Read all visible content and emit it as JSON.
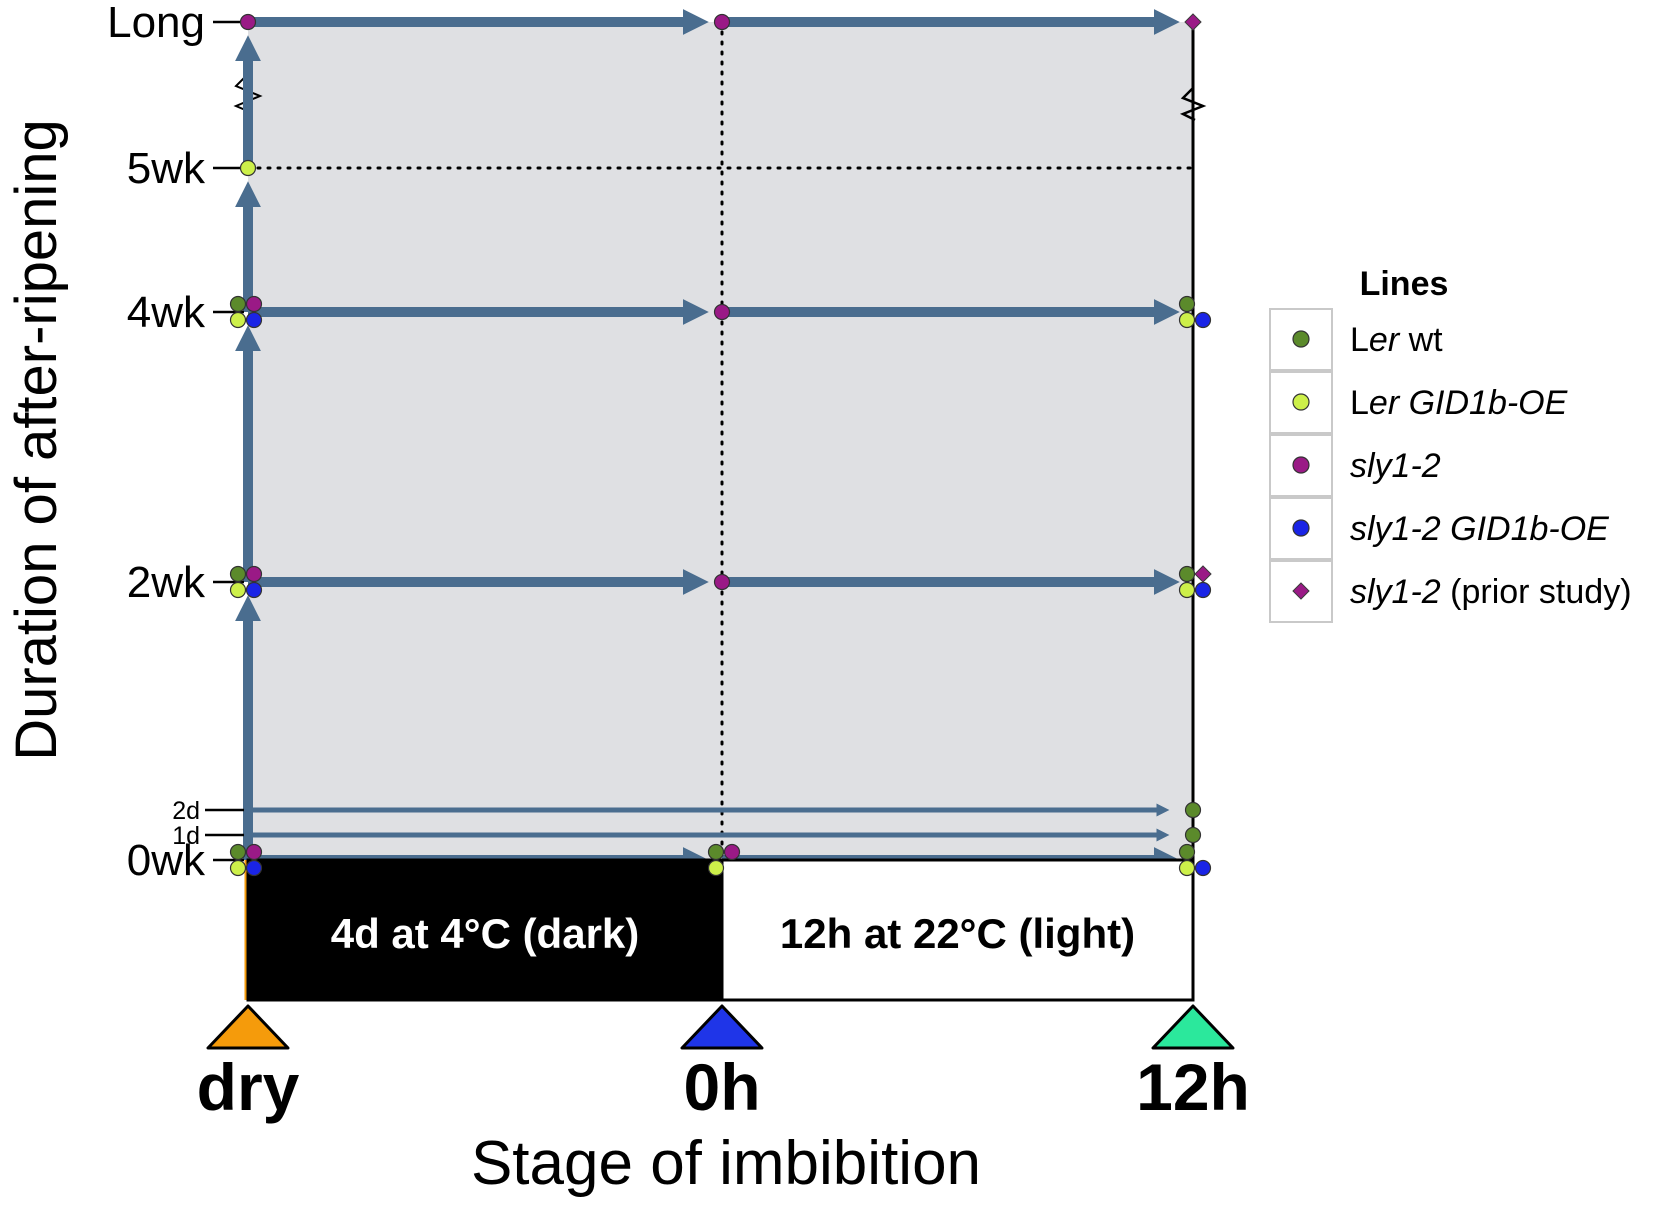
{
  "y_axis": {
    "title": "Duration of after-ripening",
    "ticks": [
      {
        "key": "0wk",
        "label": "0wk",
        "small": false
      },
      {
        "key": "1d",
        "label": "1d",
        "small": true
      },
      {
        "key": "2d",
        "label": "2d",
        "small": true
      },
      {
        "key": "2wk",
        "label": "2wk",
        "small": false
      },
      {
        "key": "4wk",
        "label": "4wk",
        "small": false
      },
      {
        "key": "5wk",
        "label": "5wk",
        "small": false
      },
      {
        "key": "long",
        "label": "Long",
        "small": false
      }
    ]
  },
  "x_axis": {
    "title": "Stage of imbibition",
    "stages": [
      {
        "key": "dry",
        "label": "dry",
        "color": "#f59b0b"
      },
      {
        "key": "0h",
        "label": "0h",
        "color": "#1f35e8"
      },
      {
        "key": "12h",
        "label": "12h",
        "color": "#2be89c"
      }
    ]
  },
  "phases": [
    {
      "label": "4d at 4°C (dark)",
      "fill": "#000000",
      "text_color": "#ffffff"
    },
    {
      "label": "12h at 22°C (light)",
      "fill": "#ffffff",
      "text_color": "#000000"
    }
  ],
  "legend": {
    "title": "Lines",
    "items": [
      {
        "key": "ler",
        "parts": [
          {
            "t": "L",
            "i": false
          },
          {
            "t": "er",
            "i": true
          },
          {
            "t": " wt",
            "i": false
          }
        ],
        "color": "#5b8a2b",
        "marker": "circle"
      },
      {
        "key": "lergid",
        "parts": [
          {
            "t": "L",
            "i": false
          },
          {
            "t": "er GID1b-OE",
            "i": true
          }
        ],
        "color": "#cdf04a",
        "marker": "circle"
      },
      {
        "key": "sly",
        "parts": [
          {
            "t": "sly1-2",
            "i": true
          }
        ],
        "color": "#9a1a86",
        "marker": "circle"
      },
      {
        "key": "slygid",
        "parts": [
          {
            "t": "sly1-2 GID1b-OE",
            "i": true
          }
        ],
        "color": "#1a24e6",
        "marker": "circle"
      },
      {
        "key": "prior",
        "parts": [
          {
            "t": "sly1-2",
            "i": true
          },
          {
            "t": " (prior study)",
            "i": false
          }
        ],
        "color": "#9a1a86",
        "marker": "diamond"
      }
    ]
  },
  "samples": [
    {
      "duration": "0wk",
      "stage": "dry",
      "lines": [
        "ler",
        "lergid",
        "sly",
        "slygid"
      ]
    },
    {
      "duration": "0wk",
      "stage": "0h",
      "lines": [
        "ler",
        "lergid",
        "sly"
      ]
    },
    {
      "duration": "0wk",
      "stage": "12h",
      "lines": [
        "ler",
        "lergid",
        "slygid"
      ]
    },
    {
      "duration": "1d",
      "stage": "12h",
      "lines": [
        "ler"
      ]
    },
    {
      "duration": "2d",
      "stage": "12h",
      "lines": [
        "ler"
      ]
    },
    {
      "duration": "2wk",
      "stage": "dry",
      "lines": [
        "ler",
        "lergid",
        "sly",
        "slygid"
      ]
    },
    {
      "duration": "2wk",
      "stage": "0h",
      "lines": [
        "sly"
      ]
    },
    {
      "duration": "2wk",
      "stage": "12h",
      "lines": [
        "ler",
        "lergid",
        "slygid",
        "prior"
      ]
    },
    {
      "duration": "4wk",
      "stage": "dry",
      "lines": [
        "ler",
        "lergid",
        "sly",
        "slygid"
      ]
    },
    {
      "duration": "4wk",
      "stage": "0h",
      "lines": [
        "sly"
      ]
    },
    {
      "duration": "4wk",
      "stage": "12h",
      "lines": [
        "ler",
        "lergid",
        "slygid"
      ]
    },
    {
      "duration": "5wk",
      "stage": "dry",
      "lines": [
        "lergid"
      ]
    },
    {
      "duration": "long",
      "stage": "dry",
      "lines": [
        "sly"
      ]
    },
    {
      "duration": "long",
      "stage": "0h",
      "lines": [
        "sly"
      ]
    },
    {
      "duration": "long",
      "stage": "12h",
      "lines": [
        "prior"
      ]
    }
  ]
}
